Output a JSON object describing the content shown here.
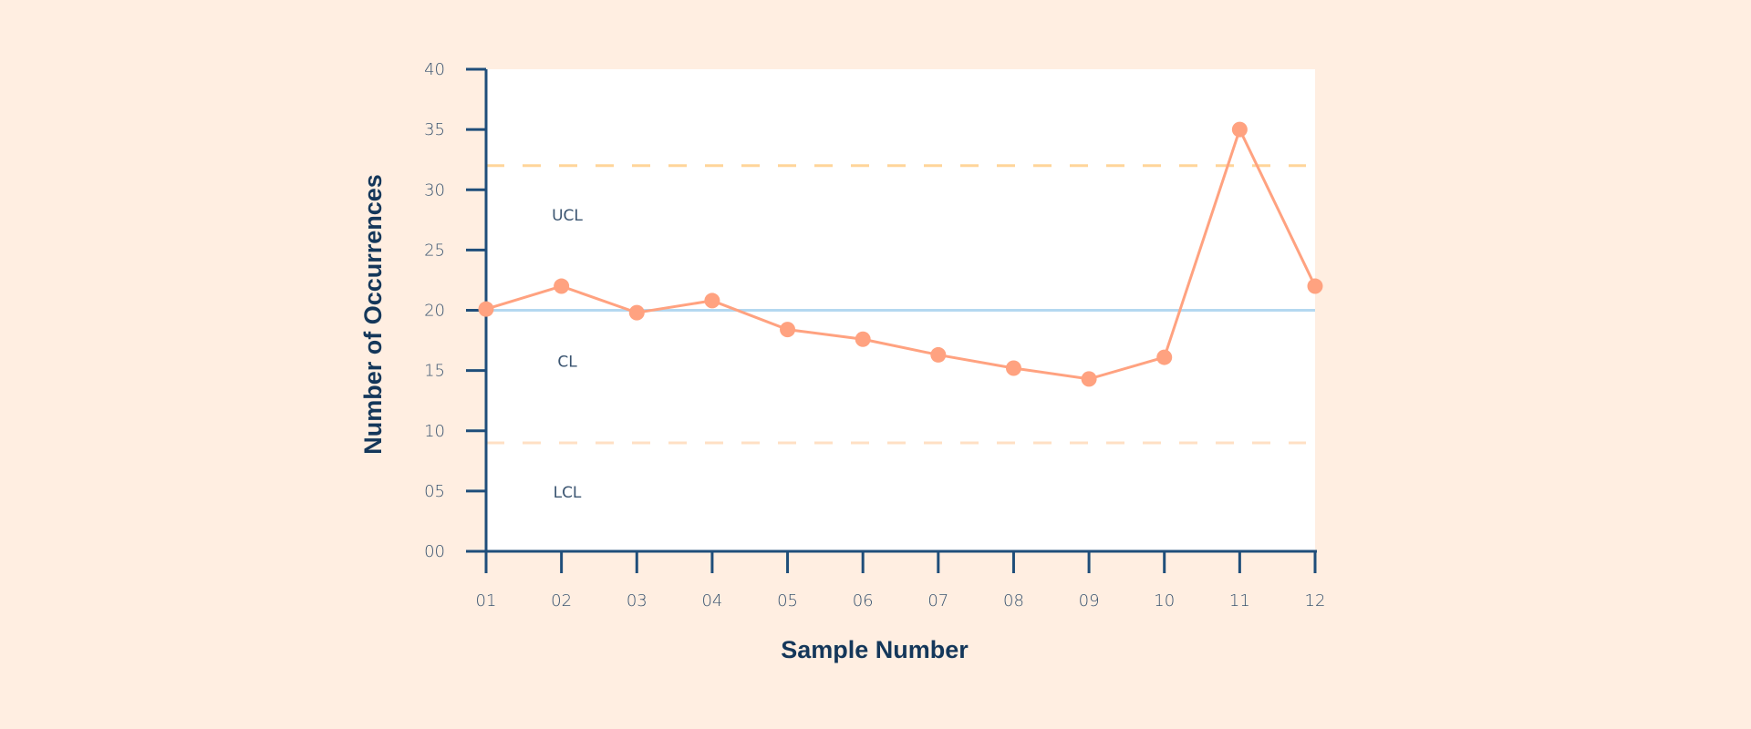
{
  "chart_data": {
    "type": "line",
    "title": "",
    "xlabel": "Sample Number",
    "ylabel": "Number of Occurrences",
    "categories": [
      "01",
      "02",
      "03",
      "04",
      "05",
      "06",
      "07",
      "08",
      "09",
      "10",
      "11",
      "12"
    ],
    "series": [
      {
        "values": [
          20.1,
          22,
          19.8,
          20.8,
          18.4,
          17.6,
          16.3,
          15.2,
          14.3,
          16.1,
          35,
          22
        ]
      }
    ],
    "ylim": [
      0,
      40
    ],
    "yticks": [
      "00",
      "05",
      "10",
      "15",
      "20",
      "25",
      "30",
      "35",
      "40"
    ],
    "control_lines": [
      {
        "label": "UCL",
        "value": 32,
        "style": "dashed",
        "color": "#FFD59A"
      },
      {
        "label": "CL",
        "value": 20,
        "style": "solid",
        "color": "#B4D8F0"
      },
      {
        "label": "LCL",
        "value": 9,
        "style": "dashed",
        "color": "#FFE0C4"
      }
    ],
    "grid": false,
    "colors": {
      "background": "#FFEEE1",
      "plot_background": "#FFFFFF",
      "axis": "#1F4E7A",
      "series": "#FFA280",
      "title": "#14375A"
    }
  }
}
